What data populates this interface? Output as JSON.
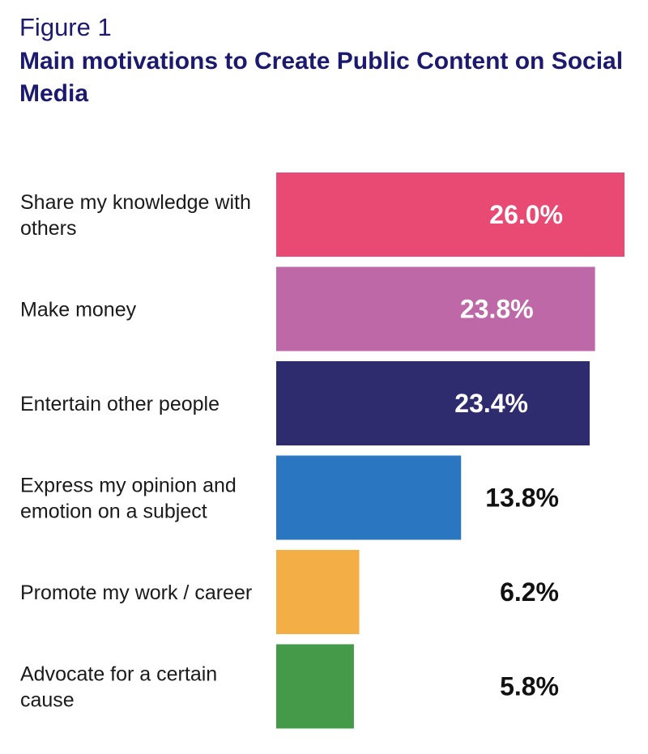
{
  "header": {
    "figure_label": "Figure 1",
    "title": "Main motivations to Create Public Content on Social Media"
  },
  "chart_data": {
    "type": "bar",
    "orientation": "horizontal",
    "categories": [
      "Share my knowledge with others",
      "Make money",
      "Entertain other people",
      "Express my opinion and emotion on a subject",
      "Promote my work / career",
      "Advocate for a certain cause"
    ],
    "values": [
      26.0,
      23.8,
      23.4,
      13.8,
      6.2,
      5.8
    ],
    "value_labels": [
      "26.0%",
      "23.8%",
      "23.4%",
      "13.8%",
      "6.2%",
      "5.8%"
    ],
    "colors": [
      "#e94a73",
      "#bf68a8",
      "#2e2b6e",
      "#2a76c0",
      "#f4ae46",
      "#459a4a"
    ],
    "title": "Main motivations to Create Public Content on Social Media",
    "xlabel": "",
    "ylabel": "",
    "grid": false,
    "legend": "none"
  }
}
